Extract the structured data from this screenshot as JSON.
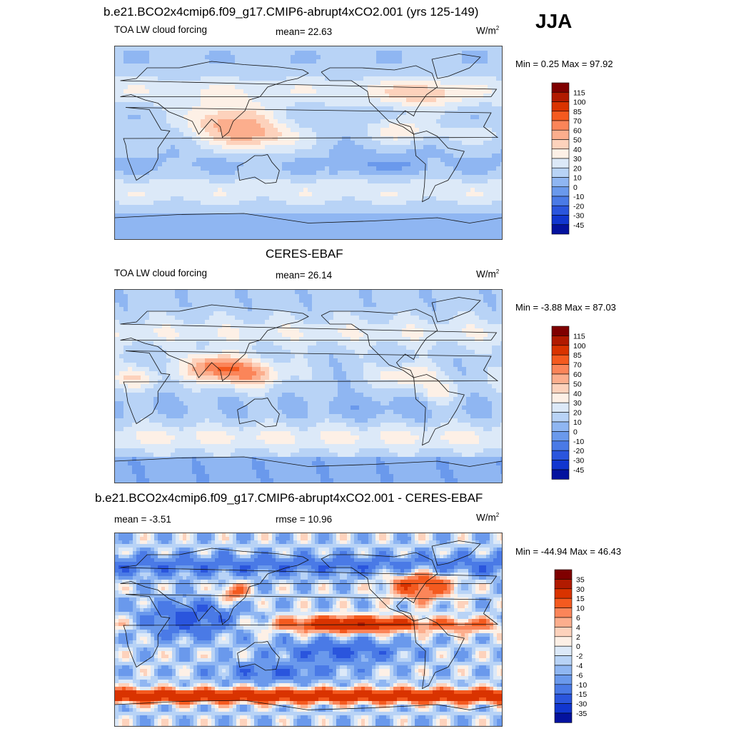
{
  "season": "JJA",
  "panels": [
    {
      "title": "b.e21.BCO2x4cmip6.f09_g17.CMIP6-abrupt4xCO2.001 (yrs 125-149)",
      "left": "TOA LW cloud forcing",
      "center": "mean=  22.63",
      "units": "W/m",
      "units_sup": "2",
      "minmax": "Min =   0.25 Max =  97.92",
      "field_kind": "model"
    },
    {
      "title": "CERES-EBAF",
      "left": "TOA LW cloud forcing",
      "center": "mean=  26.14",
      "units": "W/m",
      "units_sup": "2",
      "minmax": "Min =  -3.88 Max =  87.03",
      "field_kind": "obs"
    },
    {
      "title": "b.e21.BCO2x4cmip6.f09_g17.CMIP6-abrupt4xCO2.001 - CERES-EBAF",
      "left": "mean =  -3.51",
      "center": "rmse =  10.96",
      "units": "W/m",
      "units_sup": "2",
      "minmax": "Min = -44.94 Max =  46.43",
      "field_kind": "diff"
    }
  ],
  "chart_data": [
    {
      "type": "heatmap",
      "title": "b.e21.BCO2x4cmip6.f09_g17.CMIP6-abrupt4xCO2.001 (yrs 125-149)",
      "variable": "TOA LW cloud forcing",
      "units": "W/m2",
      "mean": 22.63,
      "min": 0.25,
      "max": 97.92,
      "colorbar_levels": [
        "115",
        "100",
        "85",
        "70",
        "60",
        "50",
        "40",
        "30",
        "20",
        "10",
        "0",
        "-10",
        "-20",
        "-30",
        "-45"
      ],
      "colorbar_colors": [
        "#7f0000",
        "#b11a00",
        "#d93300",
        "#f45a1f",
        "#fb8559",
        "#fcae8d",
        "#fdd2bc",
        "#fdf0e6",
        "#dce9f8",
        "#b8d3f6",
        "#8fb6f2",
        "#6a99ec",
        "#4a7ae6",
        "#2a55dd",
        "#1136cf",
        "#04129e"
      ]
    },
    {
      "type": "heatmap",
      "title": "CERES-EBAF",
      "variable": "TOA LW cloud forcing",
      "units": "W/m2",
      "mean": 26.14,
      "min": -3.88,
      "max": 87.03,
      "colorbar_levels": [
        "115",
        "100",
        "85",
        "70",
        "60",
        "50",
        "40",
        "30",
        "20",
        "10",
        "0",
        "-10",
        "-20",
        "-30",
        "-45"
      ],
      "colorbar_colors": [
        "#7f0000",
        "#b11a00",
        "#d93300",
        "#f45a1f",
        "#fb8559",
        "#fcae8d",
        "#fdd2bc",
        "#fdf0e6",
        "#dce9f8",
        "#b8d3f6",
        "#8fb6f2",
        "#6a99ec",
        "#4a7ae6",
        "#2a55dd",
        "#1136cf",
        "#04129e"
      ]
    },
    {
      "type": "heatmap",
      "title": "b.e21.BCO2x4cmip6.f09_g17.CMIP6-abrupt4xCO2.001 - CERES-EBAF",
      "units": "W/m2",
      "mean": -3.51,
      "rmse": 10.96,
      "min": -44.94,
      "max": 46.43,
      "colorbar_levels": [
        "35",
        "30",
        "15",
        "10",
        "6",
        "4",
        "2",
        "0",
        "-2",
        "-4",
        "-6",
        "-10",
        "-15",
        "-30",
        "-35"
      ],
      "colorbar_colors": [
        "#7f0000",
        "#b11a00",
        "#d93300",
        "#f45a1f",
        "#fb8559",
        "#fcae8d",
        "#fdd2bc",
        "#fdf0e6",
        "#dce9f8",
        "#b8d3f6",
        "#8fb6f2",
        "#6a99ec",
        "#4a7ae6",
        "#2a55dd",
        "#1136cf",
        "#04129e"
      ]
    }
  ]
}
